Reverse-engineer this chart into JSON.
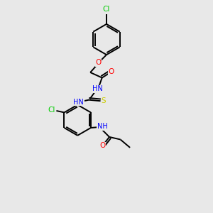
{
  "bg_color": "#e8e8e8",
  "bond_color": "#000000",
  "atom_colors": {
    "N": "#0000ff",
    "O": "#ff0000",
    "S": "#cccc00",
    "Cl": "#00cc00"
  },
  "figsize": [
    3.0,
    3.0
  ],
  "dpi": 100,
  "lw": 1.4,
  "fontsize": 7.0,
  "xlim": [
    0,
    10
  ],
  "ylim": [
    0,
    10
  ]
}
